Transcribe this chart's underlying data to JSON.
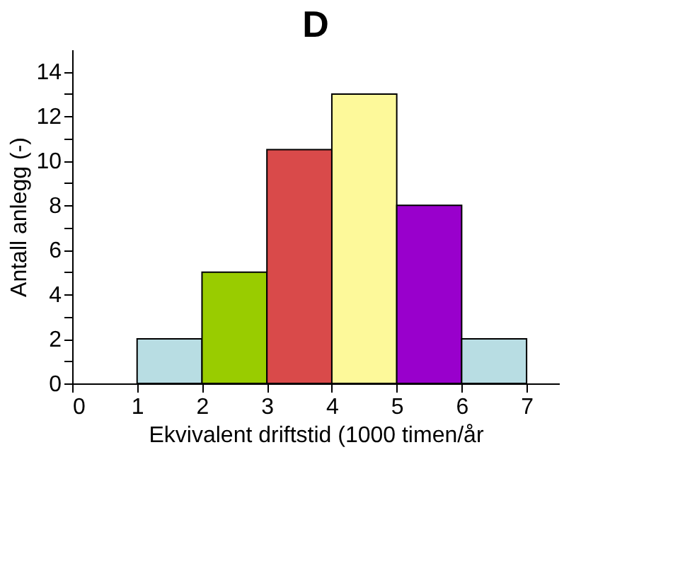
{
  "chart_data": {
    "type": "histogram",
    "title": "D",
    "xlabel": "Ekvivalent driftstid (1000 timen/år",
    "ylabel": "Antall anlegg (-)",
    "bins": [
      1,
      2,
      3,
      4,
      5,
      6,
      7
    ],
    "values": [
      2,
      5,
      10.5,
      13,
      8,
      2
    ],
    "colors": [
      "#b8dde3",
      "#99cc00",
      "#d94a4a",
      "#fdf99a",
      "#9900cc",
      "#b8dde3"
    ],
    "xlim": [
      0,
      7.5
    ],
    "xticks": [
      0,
      1,
      2,
      3,
      4,
      5,
      6,
      7
    ],
    "ylim": [
      0,
      15
    ],
    "yticks": [
      0,
      {
        "value": 1,
        "label": null
      },
      2,
      {
        "value": 3,
        "label": null
      },
      4,
      {
        "value": 5,
        "label": null
      },
      6,
      {
        "value": 7,
        "label": null
      },
      8,
      {
        "value": 9,
        "label": null
      },
      10,
      {
        "value": 11,
        "label": null
      },
      12,
      {
        "value": 13,
        "label": null
      },
      14
    ],
    "grid": false
  }
}
